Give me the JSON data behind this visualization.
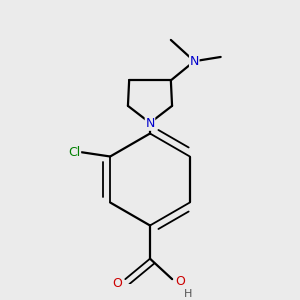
{
  "background_color": "#ebebeb",
  "bond_color": "#000000",
  "atom_colors": {
    "N": "#0000cc",
    "O": "#cc0000",
    "Cl": "#008000",
    "H": "#555555"
  },
  "figsize": [
    3.0,
    3.0
  ],
  "dpi": 100
}
